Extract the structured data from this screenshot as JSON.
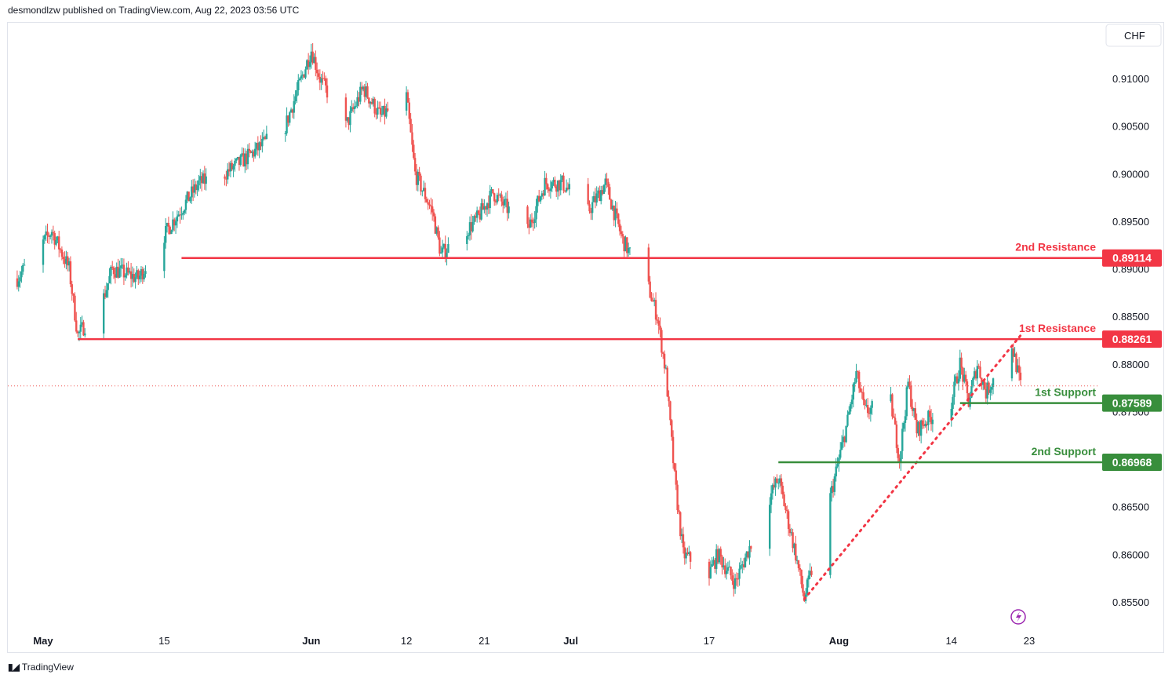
{
  "header": {
    "text": "desmondlzw published on TradingView.com, Aug 22, 2023 03:56 UTC"
  },
  "footer": {
    "brand": "TradingView",
    "logo_icon": "tradingview-logo-icon"
  },
  "colors": {
    "up": "#26a69a",
    "down": "#ef5350",
    "resistance": "#f23645",
    "support": "#388e3c",
    "axis_text": "#131722"
  },
  "chart_data": {
    "type": "candlestick",
    "currency": "CHF",
    "y_ticks": [
      "0.91000",
      "0.90500",
      "0.90000",
      "0.89500",
      "0.89000",
      "0.88500",
      "0.88000",
      "0.87500",
      "0.87000",
      "0.86500",
      "0.86000",
      "0.85500"
    ],
    "x_ticks": [
      "May",
      "15",
      "Jun",
      "12",
      "21",
      "Jul",
      "17",
      "Aug",
      "14",
      "23"
    ],
    "ylim": [
      0.8535,
      0.9144
    ],
    "current_price": 0.8777,
    "levels": [
      {
        "name": "2nd Resistance",
        "value": 0.89114,
        "label": "0.89114",
        "kind": "resistance"
      },
      {
        "name": "1st Resistance",
        "value": 0.88261,
        "label": "0.88261",
        "kind": "resistance"
      },
      {
        "name": "1st Support",
        "value": 0.87589,
        "label": "0.87589",
        "kind": "support"
      },
      {
        "name": "2nd Support",
        "value": 0.86968,
        "label": "0.86968",
        "kind": "support"
      }
    ],
    "trendline": {
      "style": "dotted",
      "from": {
        "date": "Jul 28",
        "price": 0.8553
      },
      "to": {
        "date": "Aug 22",
        "price": 0.883
      }
    },
    "price_path": [
      [
        "Apr 28",
        0.889
      ],
      [
        "May 2",
        0.894
      ],
      [
        "May 4",
        0.89
      ],
      [
        "May 5",
        0.883
      ],
      [
        "May 8",
        0.887
      ],
      [
        "May 9",
        0.89
      ],
      [
        "May 12",
        0.889
      ],
      [
        "May 16",
        0.895
      ],
      [
        "May 19",
        0.899
      ],
      [
        "May 22",
        0.9
      ],
      [
        "May 25",
        0.902
      ],
      [
        "May 29",
        0.905
      ],
      [
        "Jun 1",
        0.913
      ],
      [
        "Jun 2",
        0.91
      ],
      [
        "Jun 5",
        0.905
      ],
      [
        "Jun 7",
        0.909
      ],
      [
        "Jun 9",
        0.906
      ],
      [
        "Jun 12",
        0.908
      ],
      [
        "Jun 13",
        0.9
      ],
      [
        "Jun 15",
        0.896
      ],
      [
        "Jun 16",
        0.8915
      ],
      [
        "Jun 20",
        0.895
      ],
      [
        "Jun 22",
        0.898
      ],
      [
        "Jun 26",
        0.894
      ],
      [
        "Jun 28",
        0.899
      ],
      [
        "Jun 30",
        0.899
      ],
      [
        "Jul 3",
        0.896
      ],
      [
        "Jul 5",
        0.899
      ],
      [
        "Jul 7",
        0.893
      ],
      [
        "Jul 10",
        0.888
      ],
      [
        "Jul 11",
        0.885
      ],
      [
        "Jul 12",
        0.879
      ],
      [
        "Jul 13",
        0.868
      ],
      [
        "Jul 14",
        0.86
      ],
      [
        "Jul 17",
        0.858
      ],
      [
        "Jul 18",
        0.86
      ],
      [
        "Jul 20",
        0.857
      ],
      [
        "Jul 24",
        0.866
      ],
      [
        "Jul 25",
        0.868
      ],
      [
        "Jul 26",
        0.864
      ],
      [
        "Jul 27",
        0.86
      ],
      [
        "Jul 28",
        0.8553
      ],
      [
        "Jul 31",
        0.866
      ],
      [
        "Aug 1",
        0.87
      ],
      [
        "Aug 2",
        0.874
      ],
      [
        "Aug 3",
        0.879
      ],
      [
        "Aug 4",
        0.875
      ],
      [
        "Aug 7",
        0.876
      ],
      [
        "Aug 8",
        0.87
      ],
      [
        "Aug 9",
        0.878
      ],
      [
        "Aug 10",
        0.873
      ],
      [
        "Aug 11",
        0.874
      ],
      [
        "Aug 14",
        0.876
      ],
      [
        "Aug 15",
        0.88
      ],
      [
        "Aug 16",
        0.876
      ],
      [
        "Aug 17",
        0.88
      ],
      [
        "Aug 18",
        0.877
      ],
      [
        "Aug 21",
        0.882
      ],
      [
        "Aug 22",
        0.8777
      ]
    ]
  }
}
